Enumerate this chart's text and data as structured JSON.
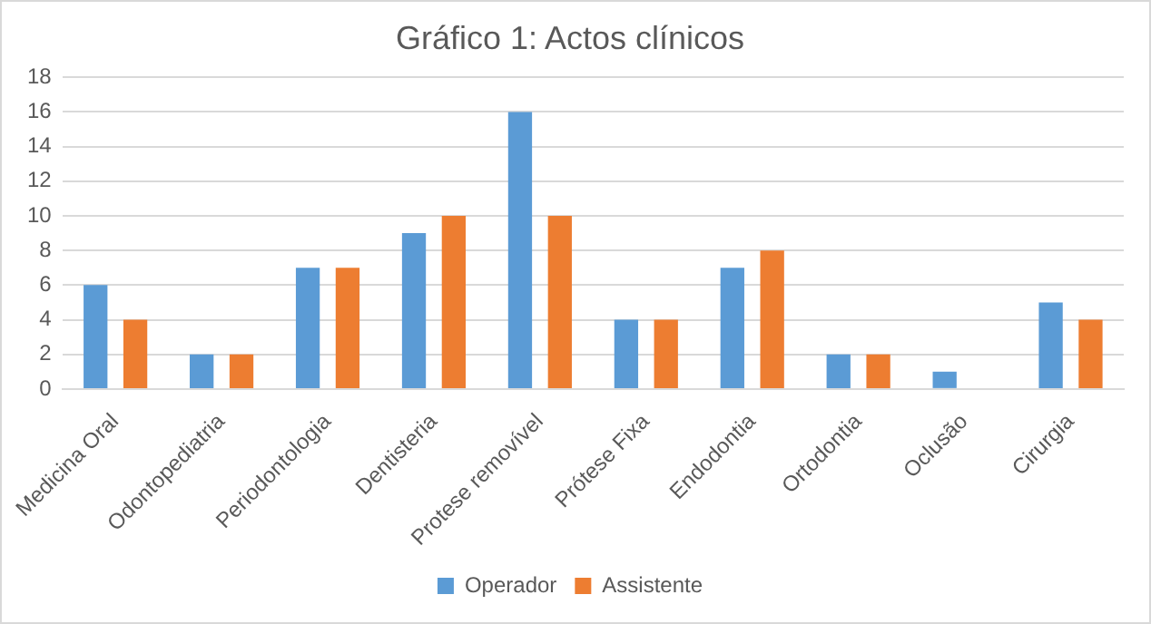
{
  "chart_data": {
    "type": "bar",
    "title": "Gráfico 1: Actos clínicos",
    "categories": [
      "Medicina Oral",
      "Odontopediatria",
      "Periodontologia",
      "Dentisteria",
      "Protese removível",
      "Prótese Fixa",
      "Endodontia",
      "Ortodontia",
      "Oclusão",
      "Cirurgia"
    ],
    "series": [
      {
        "name": "Operador",
        "color": "#5b9bd5",
        "values": [
          6,
          2,
          7,
          9,
          16,
          4,
          7,
          2,
          1,
          5
        ]
      },
      {
        "name": "Assistente",
        "color": "#ed7d31",
        "values": [
          4,
          2,
          7,
          10,
          10,
          4,
          8,
          2,
          0,
          4
        ]
      }
    ],
    "ylim": [
      0,
      18
    ],
    "yticks": [
      0,
      2,
      4,
      6,
      8,
      10,
      12,
      14,
      16,
      18
    ],
    "grid": "y",
    "legend": "bottom"
  }
}
